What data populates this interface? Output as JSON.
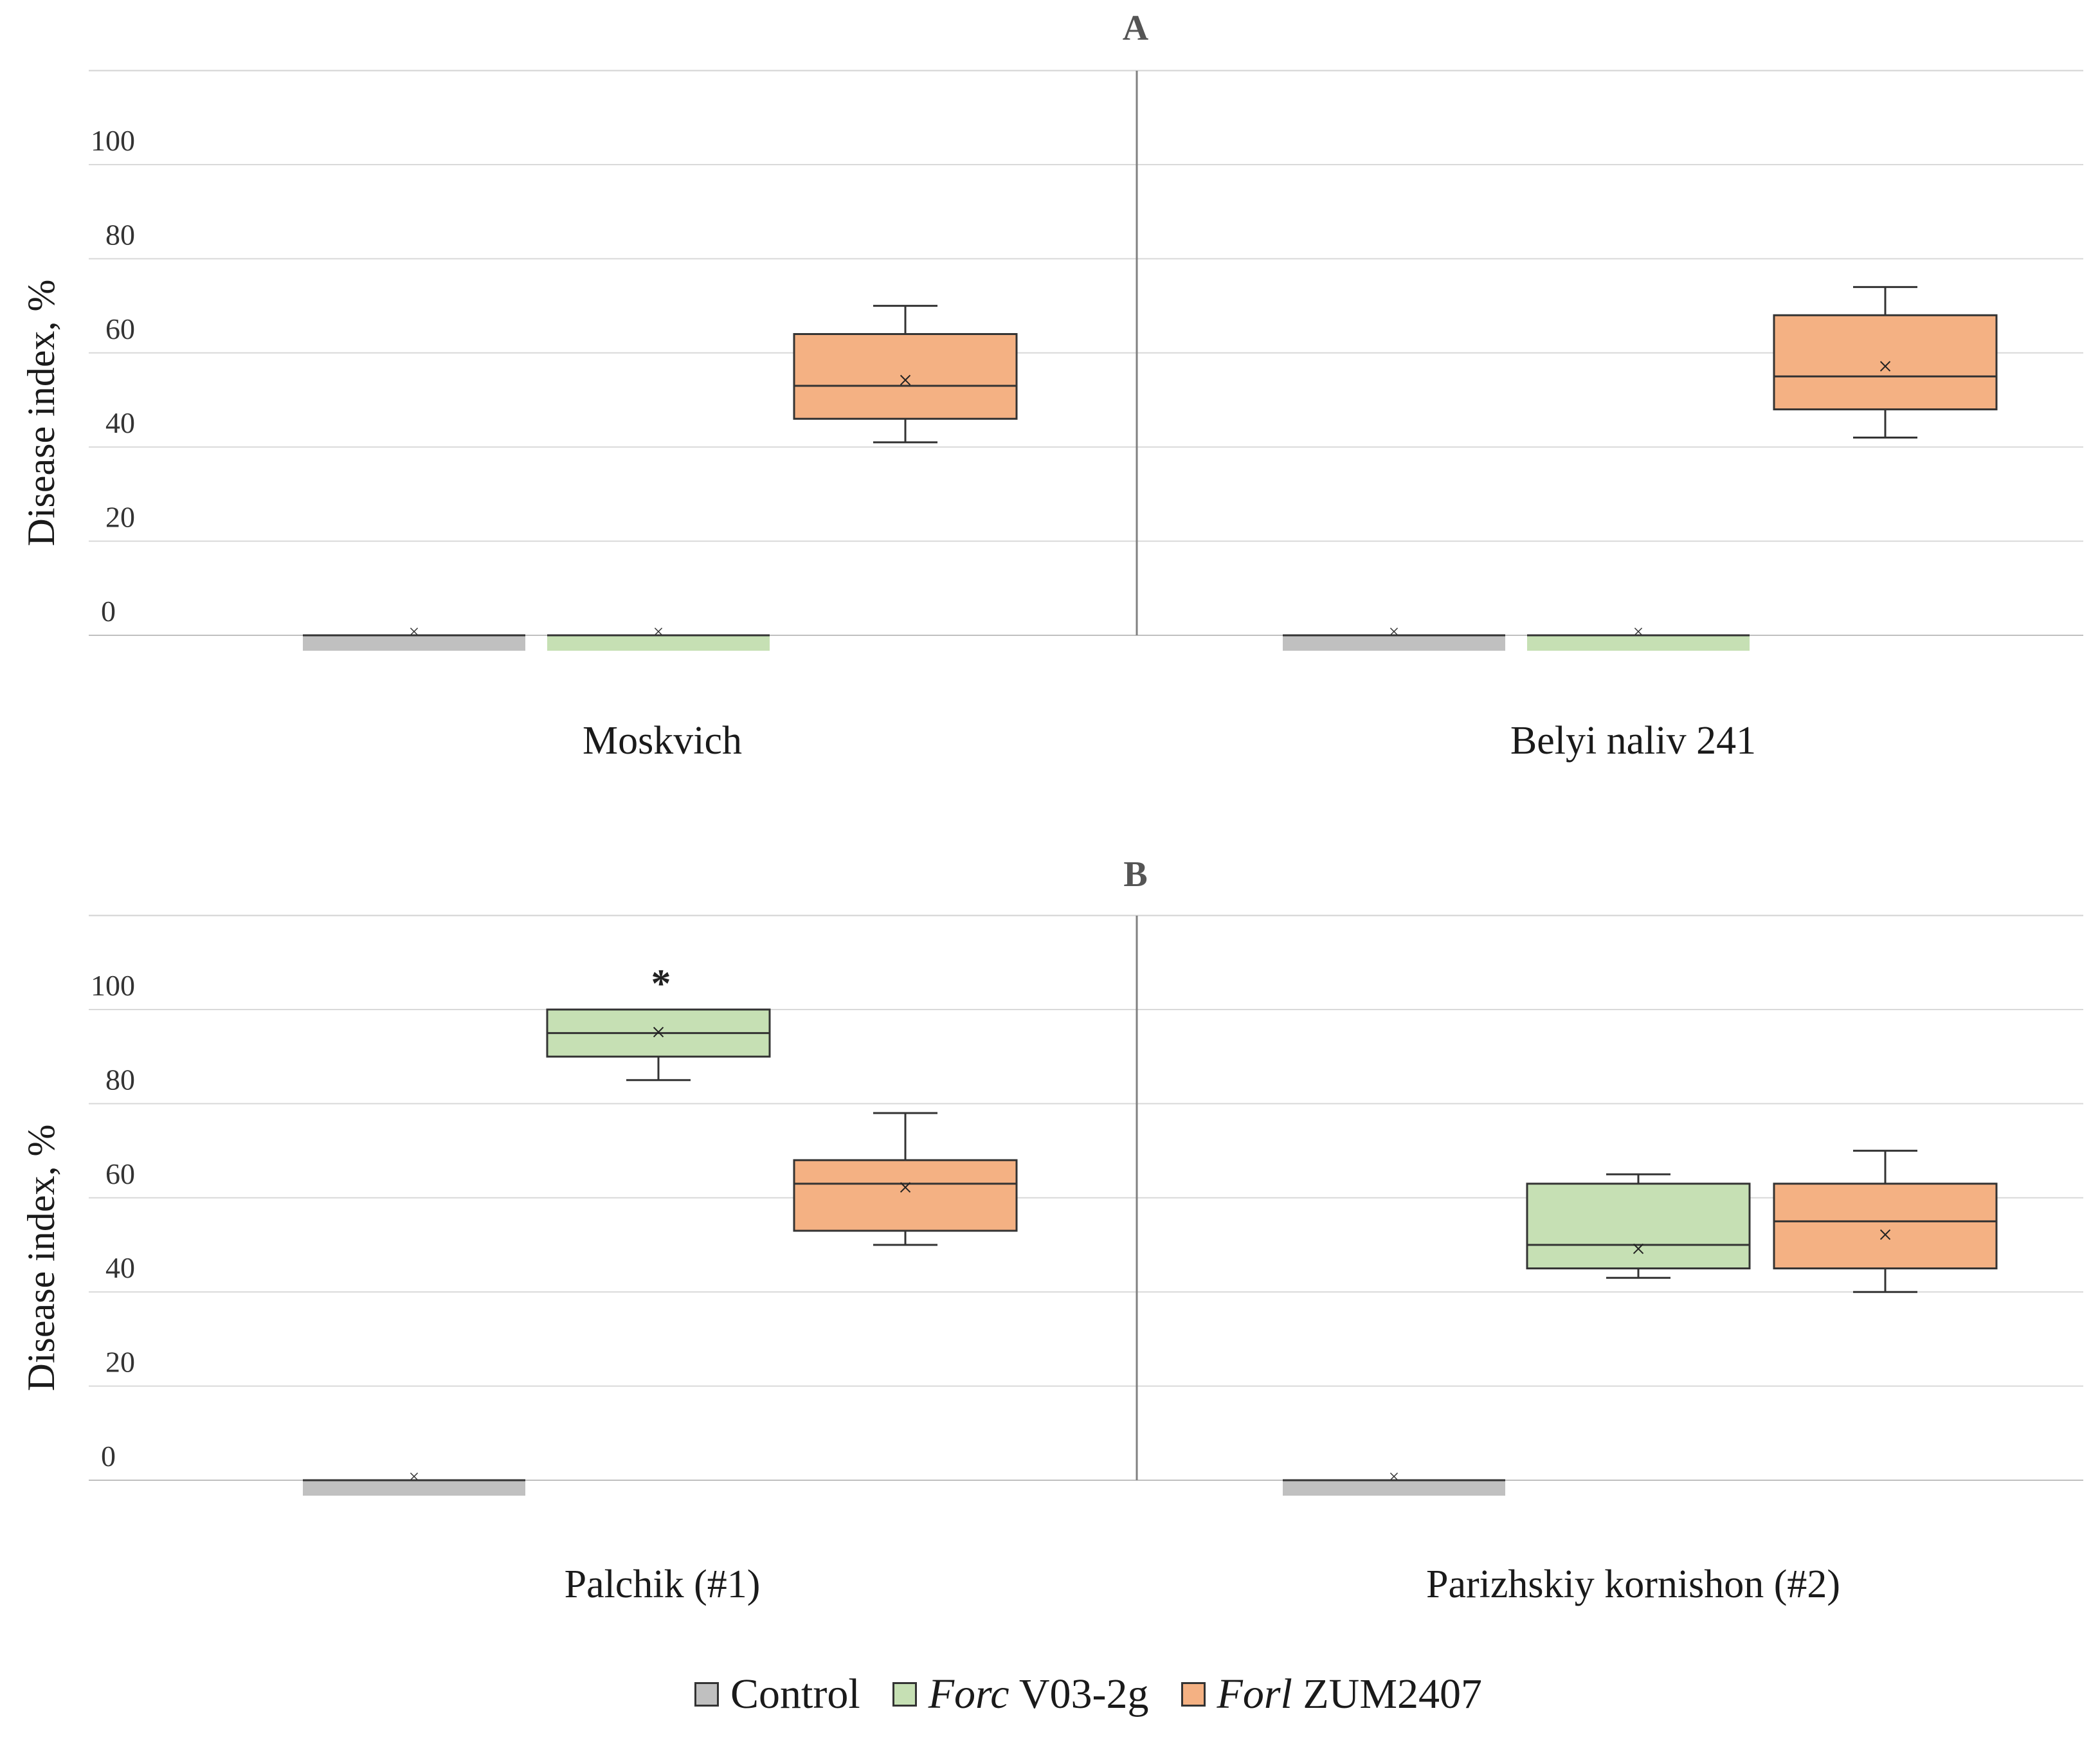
{
  "chart_data": [
    {
      "type": "box",
      "title": "A",
      "ylabel": "Disease index, %",
      "ylim": [
        0,
        120
      ],
      "yticks": [
        0,
        20,
        40,
        60,
        80,
        100
      ],
      "groups": [
        {
          "name": "Moskvich",
          "boxes": [
            {
              "series": "Control",
              "min": 0,
              "q1": 0,
              "median": 0,
              "q3": 0,
              "max": 0,
              "mean": 0
            },
            {
              "series": "Forc V03-2g",
              "min": 0,
              "q1": 0,
              "median": 0,
              "q3": 0,
              "max": 0,
              "mean": 0
            },
            {
              "series": "Forl ZUM2407",
              "min": 41,
              "q1": 46,
              "median": 53,
              "q3": 64,
              "max": 70,
              "mean": 54
            }
          ]
        },
        {
          "name": "Belyi naliv 241",
          "boxes": [
            {
              "series": "Control",
              "min": 0,
              "q1": 0,
              "median": 0,
              "q3": 0,
              "max": 0,
              "mean": 0
            },
            {
              "series": "Forc V03-2g",
              "min": 0,
              "q1": 0,
              "median": 0,
              "q3": 0,
              "max": 0,
              "mean": 0
            },
            {
              "series": "Forl ZUM2407",
              "min": 42,
              "q1": 48,
              "median": 55,
              "q3": 68,
              "max": 74,
              "mean": 57
            }
          ]
        }
      ]
    },
    {
      "type": "box",
      "title": "B",
      "ylabel": "Disease index, %",
      "ylim": [
        0,
        120
      ],
      "yticks": [
        0,
        20,
        40,
        60,
        80,
        100
      ],
      "groups": [
        {
          "name": "Palchik (#1)",
          "boxes": [
            {
              "series": "Control",
              "min": 0,
              "q1": 0,
              "median": 0,
              "q3": 0,
              "max": 0,
              "mean": 0
            },
            {
              "series": "Forc V03-2g",
              "min": 85,
              "q1": 90,
              "median": 95,
              "q3": 100,
              "max": 100,
              "mean": 95,
              "annotation": "*"
            },
            {
              "series": "Forl ZUM2407",
              "min": 50,
              "q1": 53,
              "median": 63,
              "q3": 68,
              "max": 78,
              "mean": 62
            }
          ]
        },
        {
          "name": "Parizhskiy kornishon (#2)",
          "boxes": [
            {
              "series": "Control",
              "min": 0,
              "q1": 0,
              "median": 0,
              "q3": 0,
              "max": 0,
              "mean": 0
            },
            {
              "series": "Forc V03-2g",
              "min": 43,
              "q1": 45,
              "median": 50,
              "q3": 63,
              "max": 65,
              "mean": 49
            },
            {
              "series": "Forl ZUM2407",
              "min": 40,
              "q1": 45,
              "median": 55,
              "q3": 63,
              "max": 70,
              "mean": 52
            }
          ]
        }
      ]
    }
  ],
  "legend": {
    "items": [
      {
        "key": "Control",
        "italic": "",
        "text": "Control",
        "color": "#c0c0c0"
      },
      {
        "key": "Forc V03-2g",
        "italic": "Forc",
        "text": " V03-2g",
        "color": "#c6e0b4"
      },
      {
        "key": "Forl ZUM2407",
        "italic": "Forl",
        "text": " ZUM2407",
        "color": "#f4b183"
      }
    ]
  },
  "colors": {
    "Control": "#c0c0c0",
    "Forc V03-2g": "#c6e0b4",
    "Forl ZUM2407": "#f4b183",
    "gridline": "#d9d9d9",
    "divider": "#808080",
    "box_stroke": "#333333"
  }
}
